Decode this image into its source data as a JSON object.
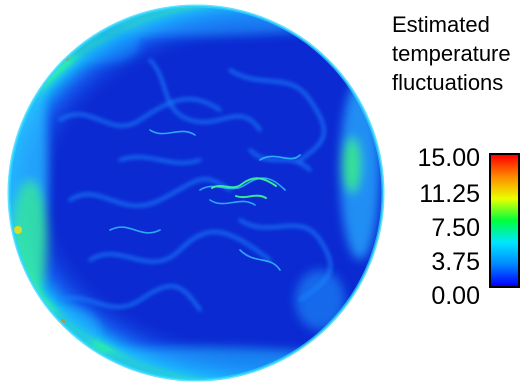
{
  "legend": {
    "title_lines": [
      "Estimated",
      "temperature",
      "fluctuations"
    ],
    "ticks": [
      "15.00",
      "11.25",
      "7.50",
      "3.75",
      "0.00"
    ],
    "range": [
      0,
      15
    ],
    "colormap": [
      "#0000ff",
      "#0088ff",
      "#00e6ff",
      "#00ff3c",
      "#eaff00",
      "#ff8a00",
      "#ff0000"
    ]
  },
  "field": {
    "shape": "circle",
    "background_color": "#0d2fd6",
    "edge_color": "#18b6ff",
    "hot_spot_color": "#3cff64"
  }
}
